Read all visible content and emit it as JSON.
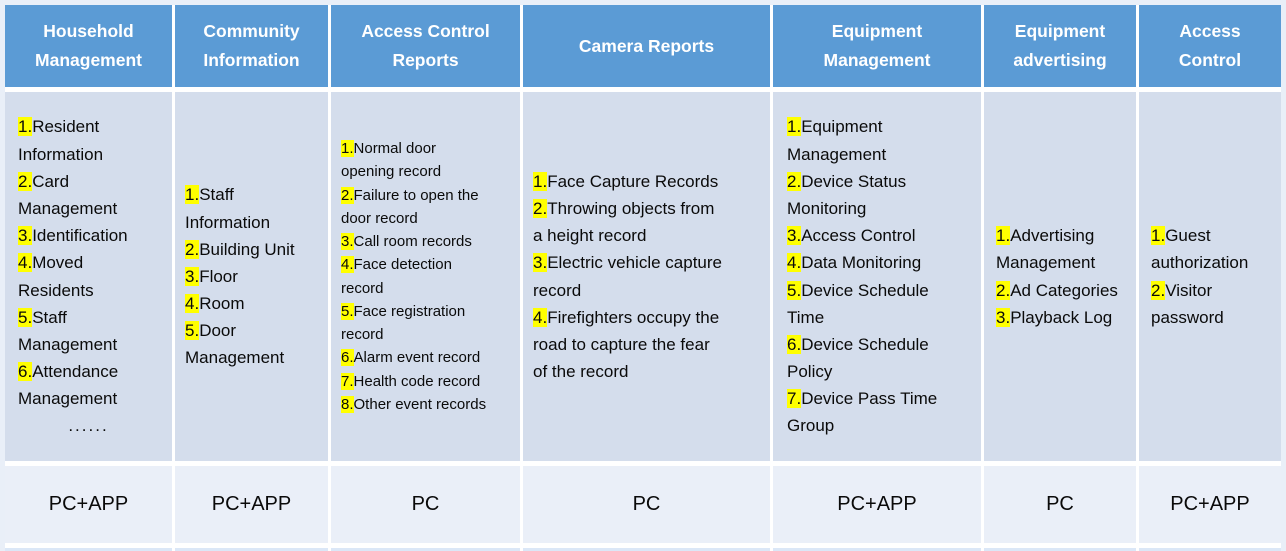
{
  "colors": {
    "page_background": "#E9EFF8",
    "header_bg": "#5B9BD5",
    "header_text": "#FFFFFF",
    "body_bg": "#D4DDEC",
    "footer_bg": "#EAEFF8",
    "highlight": "#FFFF00",
    "gap": "#FFFFFF",
    "next_row_strip": "#DBE7F7"
  },
  "table": {
    "columns": [
      {
        "id": "household-management",
        "header": "Household Management",
        "items": [
          {
            "num": "1.",
            "text": "Resident Information"
          },
          {
            "num": "2.",
            "text": "Card Management"
          },
          {
            "num": "3.",
            "text": "Identification"
          },
          {
            "num": "4.",
            "text": "Moved Residents"
          },
          {
            "num": "5.",
            "text": "Staff Management"
          },
          {
            "num": "6.",
            "text": "Attendance Management"
          }
        ],
        "more": "......",
        "platform": "PC+APP"
      },
      {
        "id": "community-information",
        "header": "Community Information",
        "items": [
          {
            "num": "1.",
            "text": "Staff Information"
          },
          {
            "num": "2.",
            "text": "Building Unit"
          },
          {
            "num": "3.",
            "text": "Floor"
          },
          {
            "num": "4.",
            "text": "Room"
          },
          {
            "num": "5.",
            "text": "Door Management"
          }
        ],
        "platform": "PC+APP"
      },
      {
        "id": "access-control-reports",
        "header": "Access Control Reports",
        "items": [
          {
            "num": "1.",
            "text": "Normal door opening record"
          },
          {
            "num": "2.",
            "text": "Failure to open the door record"
          },
          {
            "num": "3.",
            "text": "Call room records"
          },
          {
            "num": "4.",
            "text": "Face detection record"
          },
          {
            "num": "5.",
            "text": "Face registration record"
          },
          {
            "num": "6.",
            "text": "Alarm event record"
          },
          {
            "num": "7.",
            "text": "Health code record"
          },
          {
            "num": "8.",
            "text": "Other event records"
          }
        ],
        "platform": "PC"
      },
      {
        "id": "camera-reports",
        "header": "Camera Reports",
        "items": [
          {
            "num": "1.",
            "text": "Face Capture Records"
          },
          {
            "num": "2.",
            "text": "Throwing objects from a height record"
          },
          {
            "num": "3.",
            "text": "Electric vehicle capture record"
          },
          {
            "num": "4.",
            "text": "Firefighters occupy the road to capture the fear of the record"
          }
        ],
        "platform": "PC"
      },
      {
        "id": "equipment-management",
        "header": "Equipment Management",
        "items": [
          {
            "num": "1.",
            "text": "Equipment Management"
          },
          {
            "num": "2.",
            "text": "Device Status Monitoring"
          },
          {
            "num": "3.",
            "text": "Access Control"
          },
          {
            "num": "4.",
            "text": "Data Monitoring"
          },
          {
            "num": "5.",
            "text": "Device Schedule Time"
          },
          {
            "num": "6.",
            "text": "Device Schedule Policy"
          },
          {
            "num": "7.",
            "text": "Device Pass Time Group"
          }
        ],
        "platform": "PC+APP"
      },
      {
        "id": "equipment-advertising",
        "header": "Equipment advertising",
        "items": [
          {
            "num": "1.",
            "text": "Advertising Management"
          },
          {
            "num": "2.",
            "text": "Ad Categories"
          },
          {
            "num": "3.",
            "text": "Playback Log"
          }
        ],
        "platform": "PC"
      },
      {
        "id": "access-control",
        "header": "Access Control",
        "items": [
          {
            "num": "1.",
            "text": "Guest authorization"
          },
          {
            "num": "2.",
            "text": "Visitor password"
          }
        ],
        "platform": "PC+APP"
      }
    ]
  }
}
